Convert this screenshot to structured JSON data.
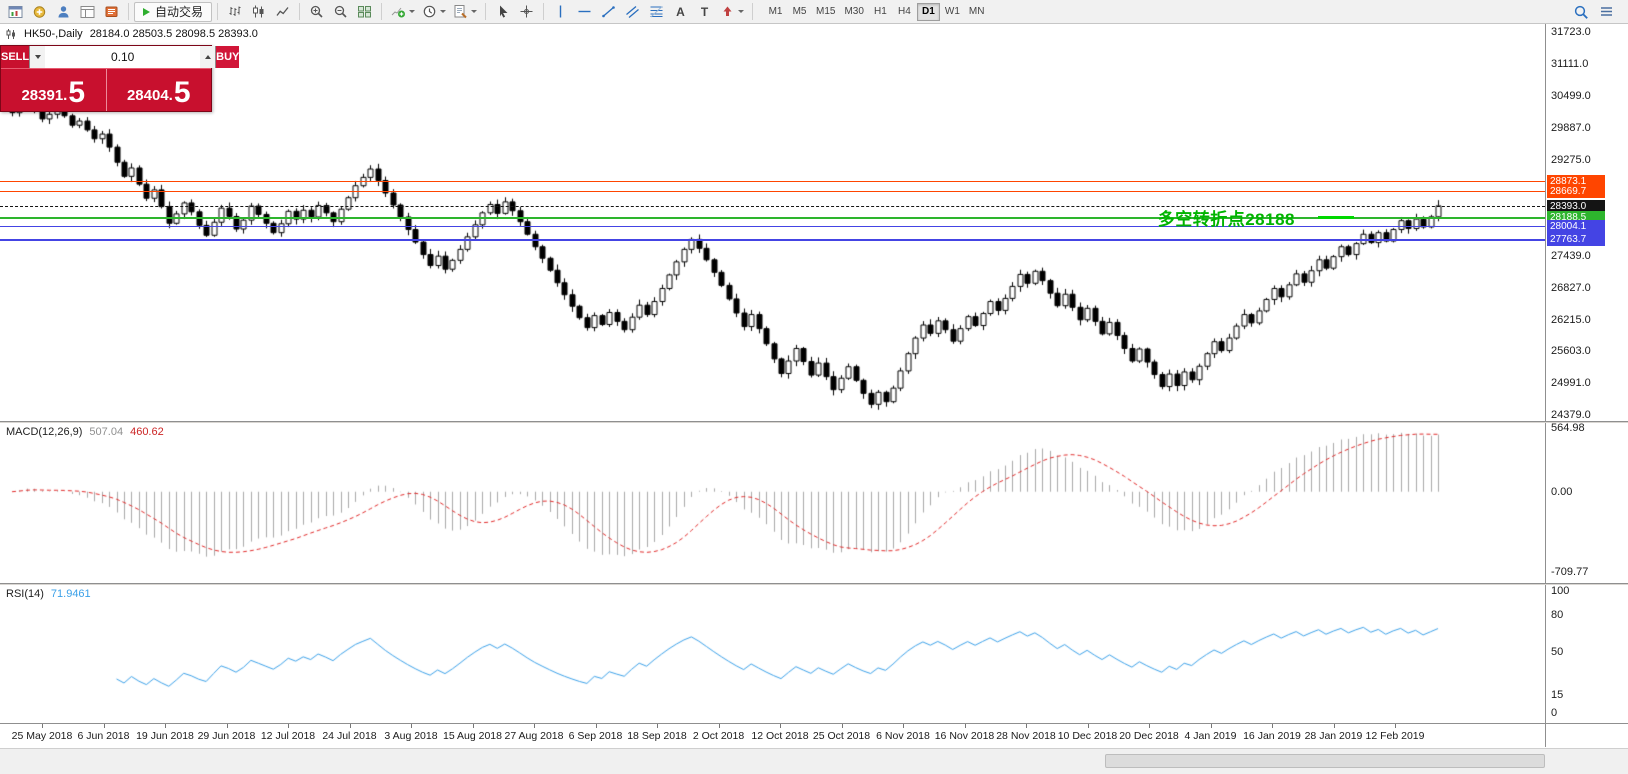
{
  "toolbar": {
    "autotrading_label": "自动交易",
    "timeframes": [
      "M1",
      "M5",
      "M15",
      "M30",
      "H1",
      "H4",
      "D1",
      "W1",
      "MN"
    ],
    "active_timeframe": "D1",
    "text_tool": "A",
    "label_tool": "T"
  },
  "trade_panel": {
    "sell_label": "SELL",
    "buy_label": "BUY",
    "volume": "0.10",
    "sell_price_small": "28391.",
    "sell_price_big": "5",
    "buy_price_small": "28404.",
    "buy_price_big": "5"
  },
  "header": {
    "symbol_title": "HK50-,Daily",
    "ohlc_text": "28184.0 28503.5 28098.5 28393.0"
  },
  "macd": {
    "name": "MACD(12,26,9)",
    "value_main": "507.04",
    "value_signal": "460.62"
  },
  "rsi": {
    "name": "RSI(14)",
    "value": "71.9461"
  },
  "chart_data": {
    "type": "candlestick",
    "symbol": "HK50",
    "timeframe": "Daily",
    "price_range": [
      24270,
      31880
    ],
    "price_axis_ticks": [
      "31723.0",
      "31111.0",
      "30499.0",
      "29887.0",
      "29275.0",
      "27439.0",
      "26827.0",
      "26215.0",
      "25603.0",
      "24991.0",
      "24379.0"
    ],
    "time_axis_ticks": [
      "25 May 2018",
      "6 Jun 2018",
      "19 Jun 2018",
      "29 Jun 2018",
      "12 Jul 2018",
      "24 Jul 2018",
      "3 Aug 2018",
      "15 Aug 2018",
      "27 Aug 2018",
      "6 Sep 2018",
      "18 Sep 2018",
      "2 Oct 2018",
      "12 Oct 2018",
      "25 Oct 2018",
      "6 Nov 2018",
      "16 Nov 2018",
      "28 Nov 2018",
      "10 Dec 2018",
      "20 Dec 2018",
      "4 Jan 2019",
      "16 Jan 2019",
      "28 Jan 2019",
      "12 Feb 2019"
    ],
    "last_bar": {
      "open": 28184.0,
      "high": 28503.5,
      "low": 28098.5,
      "close": 28393.0
    },
    "closes": [
      30180,
      30320,
      30390,
      30240,
      30060,
      30150,
      30280,
      30120,
      29940,
      30020,
      29850,
      29680,
      29770,
      29520,
      29230,
      28960,
      29120,
      28810,
      28540,
      28700,
      28380,
      28060,
      28240,
      28450,
      28280,
      28020,
      27830,
      28080,
      28350,
      28190,
      27950,
      28120,
      28390,
      28230,
      28060,
      27880,
      28050,
      28290,
      28140,
      28310,
      28180,
      28400,
      28260,
      28090,
      28330,
      28550,
      28780,
      28940,
      29100,
      28880,
      28640,
      28410,
      28180,
      27940,
      27700,
      27460,
      27250,
      27430,
      27180,
      27350,
      27560,
      27800,
      28030,
      28260,
      28420,
      28250,
      28470,
      28300,
      28090,
      27850,
      27610,
      27390,
      27160,
      26920,
      26690,
      26470,
      26250,
      26060,
      26290,
      26120,
      26350,
      26180,
      26020,
      26260,
      26490,
      26310,
      26560,
      26810,
      27070,
      27320,
      27560,
      27750,
      27580,
      27360,
      27120,
      26870,
      26610,
      26340,
      26080,
      26310,
      26040,
      25750,
      25460,
      25180,
      25420,
      25660,
      25410,
      25150,
      25380,
      25120,
      24870,
      25090,
      25310,
      25050,
      24800,
      24590,
      24820,
      24640,
      24900,
      25230,
      25560,
      25860,
      26110,
      25950,
      26190,
      26020,
      25800,
      26040,
      26270,
      26100,
      26330,
      26560,
      26390,
      26620,
      26850,
      27080,
      26910,
      27140,
      26960,
      26720,
      26480,
      26700,
      26450,
      26210,
      26430,
      26180,
      25940,
      26160,
      25910,
      25660,
      25420,
      25650,
      25400,
      25160,
      24930,
      25170,
      24950,
      25210,
      25060,
      25320,
      25560,
      25790,
      25620,
      25860,
      26090,
      26310,
      26150,
      26380,
      26600,
      26810,
      26650,
      26880,
      27090,
      26930,
      27150,
      27360,
      27200,
      27420,
      27610,
      27460,
      27670,
      27850,
      27690,
      27880,
      27720,
      27940,
      28110,
      27960,
      28140,
      27990,
      28184,
      28393
    ],
    "levels": [
      {
        "label": "28873.1",
        "value": 28873.1,
        "color": "#ff4500",
        "weight": 1,
        "style": "solid"
      },
      {
        "label": "28669.7",
        "value": 28669.7,
        "color": "#ff4500",
        "weight": 1,
        "style": "solid"
      },
      {
        "label": "28393.0",
        "value": 28393.0,
        "color": "#141414",
        "weight": 1,
        "style": "dashed"
      },
      {
        "label": "28188.5",
        "value": 28188.5,
        "color": "#2db52d",
        "weight": 2,
        "style": "solid"
      },
      {
        "label": "28004.1",
        "value": 28004.1,
        "color": "#4444e4",
        "weight": 1,
        "style": "solid"
      },
      {
        "label": "27763.7",
        "value": 27763.7,
        "color": "#4444e4",
        "weight": 2,
        "style": "solid"
      }
    ],
    "annotation": {
      "text": "多空转折点28188",
      "color": "#00b400"
    },
    "highlight_segment": {
      "level": 28188.5,
      "color": "#00d800"
    },
    "indicators": [
      {
        "type": "macd",
        "params": [
          12,
          26,
          9
        ],
        "last_main": 507.04,
        "last_signal": 460.62,
        "axis_ticks": [
          "564.98",
          "0.00",
          "-709.77"
        ],
        "y_range": [
          -810,
          610
        ]
      },
      {
        "type": "rsi",
        "params": [
          14
        ],
        "last": 71.9461,
        "axis_ticks": [
          "100",
          "80",
          "50",
          "15",
          "0"
        ],
        "y_range": [
          0,
          100
        ]
      }
    ]
  }
}
